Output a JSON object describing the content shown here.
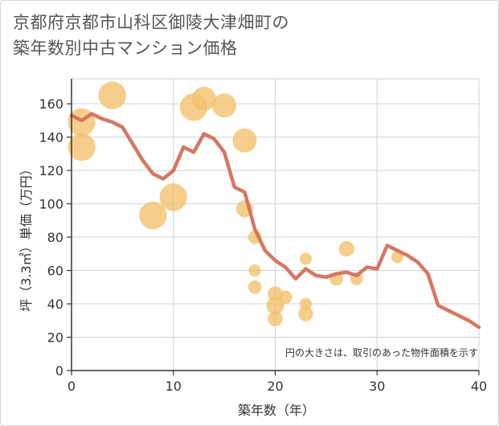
{
  "chart_data": {
    "type": "scatter",
    "title_lines": [
      "京都府京都市山科区御陵大津畑町の",
      "築年数別中古マンション価格"
    ],
    "xlabel": "築年数（年）",
    "ylabel": "坪（3.3㎡）単価（万円）",
    "xlim": [
      0,
      40
    ],
    "ylim": [
      0,
      175
    ],
    "xticks": [
      0,
      10,
      20,
      30,
      40
    ],
    "yticks": [
      0,
      20,
      40,
      60,
      80,
      100,
      120,
      140,
      160
    ],
    "grid": true,
    "note": "円の大きさは、取引のあった物件面積を示す",
    "colors": {
      "bubble": "#f2c06a",
      "line": "#d4705a",
      "grid": "#c8d2dc"
    },
    "bubbles": [
      {
        "x": 1,
        "y": 149,
        "size": 3
      },
      {
        "x": 1,
        "y": 134,
        "size": 3
      },
      {
        "x": 4,
        "y": 165,
        "size": 3
      },
      {
        "x": 8,
        "y": 93,
        "size": 3
      },
      {
        "x": 10,
        "y": 104,
        "size": 3
      },
      {
        "x": 12,
        "y": 158,
        "size": 3
      },
      {
        "x": 13,
        "y": 163,
        "size": 2.5
      },
      {
        "x": 15,
        "y": 159,
        "size": 2.5
      },
      {
        "x": 17,
        "y": 138,
        "size": 2.5
      },
      {
        "x": 17,
        "y": 97,
        "size": 1.5
      },
      {
        "x": 18,
        "y": 80,
        "size": 1
      },
      {
        "x": 18,
        "y": 60,
        "size": 0.8
      },
      {
        "x": 18,
        "y": 50,
        "size": 1
      },
      {
        "x": 20,
        "y": 46,
        "size": 1.2
      },
      {
        "x": 20,
        "y": 39,
        "size": 1.6
      },
      {
        "x": 20,
        "y": 31,
        "size": 1.2
      },
      {
        "x": 21,
        "y": 44,
        "size": 1
      },
      {
        "x": 23,
        "y": 67,
        "size": 0.8
      },
      {
        "x": 23,
        "y": 40,
        "size": 0.8
      },
      {
        "x": 23,
        "y": 34,
        "size": 1.2
      },
      {
        "x": 26,
        "y": 55,
        "size": 1
      },
      {
        "x": 27,
        "y": 73,
        "size": 1.3
      },
      {
        "x": 28,
        "y": 55,
        "size": 0.9
      },
      {
        "x": 32,
        "y": 68,
        "size": 0.8
      }
    ],
    "trend": {
      "x": [
        0,
        1,
        2,
        3,
        4,
        5,
        6,
        7,
        8,
        9,
        10,
        11,
        12,
        13,
        14,
        15,
        16,
        17,
        18,
        19,
        20,
        21,
        22,
        23,
        24,
        25,
        26,
        27,
        28,
        29,
        30,
        31,
        32,
        33,
        34,
        35,
        36,
        37,
        38,
        39,
        40
      ],
      "y": [
        153,
        150,
        154,
        151,
        149,
        146,
        136,
        126,
        118,
        115,
        120,
        134,
        131,
        142,
        139,
        131,
        110,
        107,
        85,
        72,
        66,
        62,
        55,
        61,
        57,
        56,
        58,
        59,
        57,
        62,
        61,
        75,
        72,
        69,
        65,
        58,
        39,
        36,
        33,
        30,
        26
      ]
    }
  }
}
